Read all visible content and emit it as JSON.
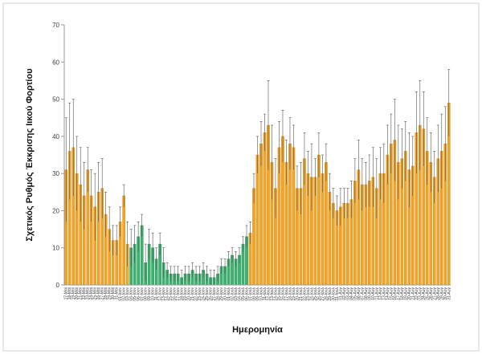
{
  "colors": {
    "orange": "#F2A427",
    "orange_edge": "#D88A12",
    "green": "#3CB371",
    "green_edge": "#23874E",
    "error": "#555555",
    "axis": "#999999",
    "frame": "#D0D0D0"
  },
  "chart_data": {
    "type": "bar",
    "xlabel": "Ημερομηνία",
    "ylabel": "Σχετικός Ρυθμός Έκκρισης Ιικού Φορτίου",
    "ylim": [
      0,
      70
    ],
    "yticks": [
      0,
      10,
      20,
      30,
      40,
      50,
      60,
      70
    ],
    "grid": false,
    "legend": "none",
    "categories": [
      "17-Μαϊ",
      "18-Μαϊ",
      "19-Μαϊ",
      "20-Μαϊ",
      "21-Μαϊ",
      "22-Μαϊ",
      "23-Μαϊ",
      "24-Μαϊ",
      "25-Μαϊ",
      "26-Μαϊ",
      "27-Μαϊ",
      "28-Μαϊ",
      "29-Μαϊ",
      "30-Μαϊ",
      "31-Μαϊ",
      "01-Ιουν",
      "02-Ιουν",
      "03-Ιουν",
      "04-Ιουν",
      "05-Ιουν",
      "06-Ιουν",
      "07-Ιουν",
      "08-Ιουν",
      "09-Ιουν",
      "10-Ιουν",
      "11-Ιουν",
      "12-Ιουν",
      "13-Ιουν",
      "14-Ιουν",
      "15-Ιουν",
      "16-Ιουν",
      "17-Ιουν",
      "18-Ιουν",
      "19-Ιουν",
      "20-Ιουν",
      "21-Ιουν",
      "22-Ιουν",
      "23-Ιουν",
      "24-Ιουν",
      "25-Ιουν",
      "26-Ιουν",
      "27-Ιουν",
      "28-Ιουν",
      "29-Ιουν",
      "30-Ιουν",
      "01-Ιουλ",
      "02-Ιουλ",
      "03-Ιουλ",
      "04-Ιουλ",
      "05-Ιουλ",
      "06-Ιουλ",
      "07-Ιουλ",
      "08-Ιουλ",
      "09-Ιουλ",
      "10-Ιουλ",
      "11-Ιουλ",
      "12-Ιουλ",
      "13-Ιουλ",
      "14-Ιουλ",
      "15-Ιουλ",
      "16-Ιουλ",
      "17-Ιουλ",
      "18-Ιουλ",
      "19-Ιουλ",
      "20-Ιουλ",
      "21-Ιουλ",
      "22-Ιουλ",
      "23-Ιουλ",
      "24-Ιουλ",
      "25-Ιουλ",
      "26-Ιουλ",
      "27-Ιουλ",
      "28-Ιουλ",
      "29-Ιουλ",
      "30-Ιουλ",
      "31-Ιουλ",
      "01-Αυγ",
      "02-Αυγ",
      "03-Αυγ",
      "04-Αυγ",
      "05-Αυγ",
      "06-Αυγ",
      "07-Αυγ",
      "08-Αυγ",
      "09-Αυγ",
      "10-Αυγ",
      "11-Αυγ",
      "12-Αυγ",
      "13-Αυγ",
      "14-Αυγ",
      "15-Αυγ",
      "16-Αυγ",
      "17-Αυγ",
      "18-Αυγ",
      "19-Αυγ",
      "20-Αυγ",
      "21-Αυγ",
      "22-Αυγ",
      "23-Αυγ",
      "24-Αυγ",
      "25-Αυγ",
      "26-Αυγ",
      "27-Αυγ",
      "28-Αυγ",
      "29-Αυγ",
      "30-Αυγ",
      "31-Αυγ"
    ],
    "values": [
      31,
      36,
      37,
      30,
      27,
      24,
      31,
      24,
      21,
      25,
      26,
      19,
      15,
      12,
      12,
      17,
      24,
      11,
      10,
      11,
      13,
      16,
      6,
      11,
      10,
      7,
      11,
      6,
      4,
      3,
      3,
      3,
      2,
      3,
      3,
      4,
      3,
      3,
      4,
      3,
      2,
      2,
      3,
      5,
      5,
      7,
      8,
      7,
      8,
      11,
      13,
      14,
      26,
      35,
      38,
      41,
      43,
      33,
      26,
      37,
      40,
      33,
      38,
      37,
      26,
      26,
      34,
      30,
      29,
      29,
      35,
      30,
      33,
      25,
      22,
      20,
      21,
      22,
      22,
      23,
      28,
      31,
      27,
      27,
      28,
      29,
      26,
      30,
      30,
      35,
      38,
      39,
      33,
      34,
      36,
      31,
      32,
      41,
      43,
      42,
      36,
      33,
      29,
      34,
      36,
      38,
      49
    ],
    "errors": [
      14,
      13,
      13,
      10,
      10,
      9,
      6,
      7,
      9,
      8,
      8,
      6,
      6,
      4,
      4,
      4,
      3,
      6,
      5,
      5,
      4,
      3,
      5,
      4,
      4,
      3,
      3,
      4,
      2,
      2,
      2,
      2,
      2,
      2,
      2,
      2,
      2,
      2,
      2,
      2,
      2,
      2,
      2,
      2,
      2,
      2,
      2,
      2,
      2,
      2,
      3,
      3,
      4,
      5,
      6,
      5,
      12,
      10,
      8,
      7,
      7,
      6,
      7,
      6,
      6,
      7,
      7,
      6,
      9,
      5,
      6,
      5,
      5,
      5,
      4,
      4,
      5,
      4,
      4,
      5,
      6,
      8,
      7,
      6,
      7,
      8,
      8,
      7,
      8,
      8,
      8,
      11,
      10,
      8,
      8,
      10,
      8,
      11,
      12,
      10,
      9,
      8,
      7,
      9,
      10,
      10,
      9
    ],
    "green_indices_ranges": [
      [
        18,
        50
      ]
    ]
  }
}
